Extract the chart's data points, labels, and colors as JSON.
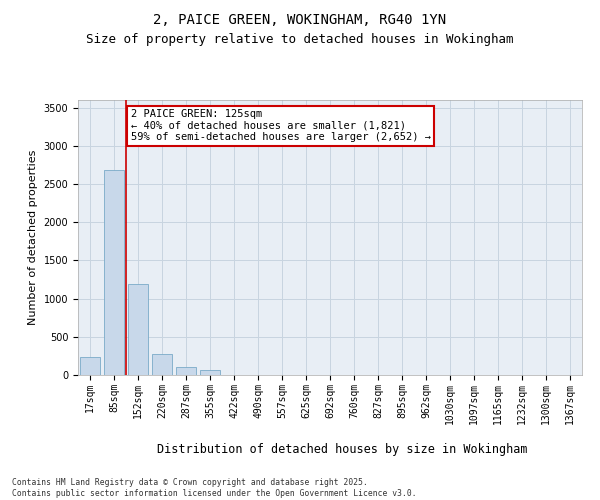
{
  "title1": "2, PAICE GREEN, WOKINGHAM, RG40 1YN",
  "title2": "Size of property relative to detached houses in Wokingham",
  "xlabel": "Distribution of detached houses by size in Wokingham",
  "ylabel": "Number of detached properties",
  "categories": [
    "17sqm",
    "85sqm",
    "152sqm",
    "220sqm",
    "287sqm",
    "355sqm",
    "422sqm",
    "490sqm",
    "557sqm",
    "625sqm",
    "692sqm",
    "760sqm",
    "827sqm",
    "895sqm",
    "962sqm",
    "1030sqm",
    "1097sqm",
    "1165sqm",
    "1232sqm",
    "1300sqm",
    "1367sqm"
  ],
  "values": [
    230,
    2680,
    1190,
    280,
    110,
    60,
    0,
    0,
    0,
    0,
    0,
    0,
    0,
    0,
    0,
    0,
    0,
    0,
    0,
    0,
    0
  ],
  "bar_color": "#c8d8ea",
  "bar_edge_color": "#7aaac8",
  "grid_color": "#c8d4e0",
  "background_color": "#e8eef5",
  "red_line_x": 1.48,
  "annotation_text": "2 PAICE GREEN: 125sqm\n← 40% of detached houses are smaller (1,821)\n59% of semi-detached houses are larger (2,652) →",
  "annotation_box_color": "#ffffff",
  "annotation_box_edge": "#cc0000",
  "ylim": [
    0,
    3600
  ],
  "yticks": [
    0,
    500,
    1000,
    1500,
    2000,
    2500,
    3000,
    3500
  ],
  "footer": "Contains HM Land Registry data © Crown copyright and database right 2025.\nContains public sector information licensed under the Open Government Licence v3.0.",
  "title_fontsize": 10,
  "subtitle_fontsize": 9,
  "tick_fontsize": 7,
  "ylabel_fontsize": 8,
  "xlabel_fontsize": 8.5,
  "annotation_fontsize": 7.5
}
